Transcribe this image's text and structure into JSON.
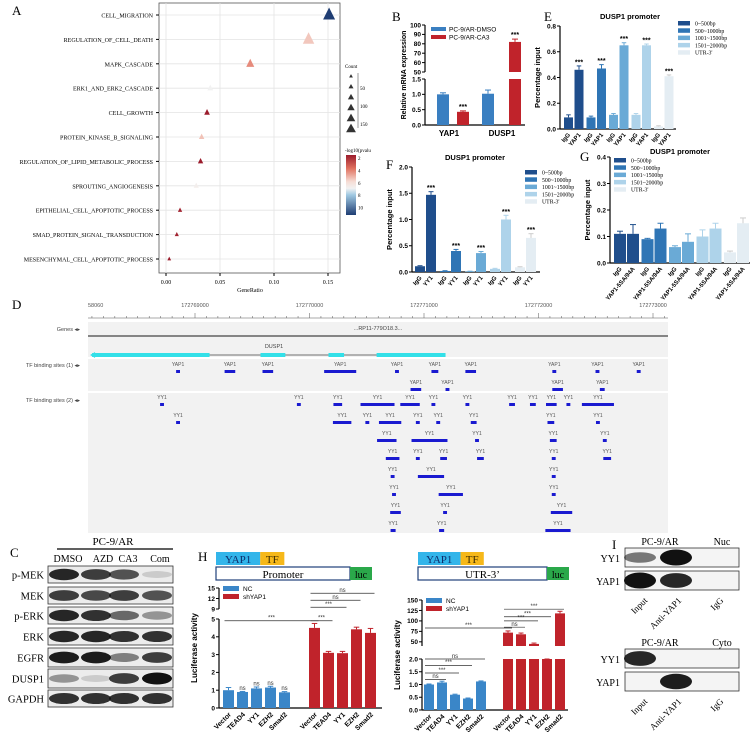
{
  "panel_letters": {
    "A": "A",
    "B": "B",
    "C": "C",
    "D": "D",
    "E": "E",
    "F": "F",
    "G": "G",
    "H": "H",
    "I": "I"
  },
  "chart_data": [
    {
      "id": "A",
      "type": "scatter",
      "marker": "triangle",
      "terms": [
        "CELL_MIGRATION",
        "REGULATION_OF_CELL_DEATH",
        "MAPK_CASCADE",
        "ERK1_AND_ERK2_CASCADE",
        "CELL_GROWTH",
        "PROTEIN_KINASE_B_SIGNALING",
        "REGULATION_OF_LIPID_METABOLIC_PROCESS",
        "SPROUTING_ANGIOGENESIS",
        "EPITHELIAL_CELL_APOPTOTIC_PROCESS",
        "SMAD_PROTEIN_SIGNAL_TRANSDUCTION",
        "MESENCHYMAL_CELL_APOPTOTIC_PROCESS"
      ],
      "gene_ratio": [
        0.151,
        0.132,
        0.078,
        0.041,
        0.038,
        0.033,
        0.032,
        0.028,
        0.013,
        0.01,
        0.003
      ],
      "count": [
        160,
        150,
        85,
        42,
        40,
        35,
        34,
        30,
        14,
        11,
        4
      ],
      "neg_log10_pvalue": [
        11,
        5.6,
        4.5,
        7,
        2,
        5.5,
        2,
        6.8,
        2.2,
        2.2,
        2
      ],
      "xlabel": "GeneRatio",
      "xticks": [
        "0.00",
        "0.05",
        "0.10",
        "0.15"
      ],
      "xlim": [
        -0.008,
        0.16
      ],
      "size_legend_title": "Count",
      "size_ticks": [
        "50",
        "100",
        "150"
      ],
      "color_legend_title": "-log10(pvalu",
      "color_ticks": [
        "2",
        "4",
        "6",
        "8",
        "10"
      ],
      "color_scale": [
        "#9b1c2c",
        "#e0705e",
        "#f6ddd5",
        "#f2f2f2",
        "#9fc8e2",
        "#1f3d73"
      ],
      "grid": true
    },
    {
      "id": "B",
      "type": "bar",
      "categories": [
        "YAP1",
        "DUSP1"
      ],
      "series": [
        {
          "name": "PC-9/AR-DMSO",
          "values": [
            1.0,
            1.02
          ],
          "errors": [
            0.05,
            0.12
          ],
          "color": "#3a7fc1"
        },
        {
          "name": "PC-9/AR-CA3",
          "values": [
            0.43,
            82
          ],
          "errors": [
            0.03,
            3
          ],
          "color": "#c0232b"
        }
      ],
      "ylabel": "Relative mRNA expression",
      "yaxis_break": true,
      "yticks_lower": [
        "0.0",
        "0.5",
        "1.0",
        "1.5"
      ],
      "yticks_upper": [
        "50",
        "60",
        "70",
        "80",
        "90",
        "100"
      ],
      "annotations": [
        "",
        "***",
        "",
        "***"
      ],
      "legend": "top-left"
    },
    {
      "id": "E",
      "type": "bar",
      "title": "DUSP1 promoter",
      "ylabel": "Percentage input",
      "regions": [
        "0~500bp",
        "500~1000bp",
        "1001~1500bp",
        "1501~2000bp",
        "UTR-3'"
      ],
      "colors": [
        "#1f4e8c",
        "#2f75b5",
        "#6aaad6",
        "#aed3ea",
        "#e4edf3"
      ],
      "group_labels": [
        "IgG",
        "YAP1"
      ],
      "values": [
        [
          0.09,
          0.46
        ],
        [
          0.09,
          0.47
        ],
        [
          0.11,
          0.65
        ],
        [
          0.11,
          0.65
        ],
        [
          0.02,
          0.41
        ]
      ],
      "errors": [
        [
          0.02,
          0.03
        ],
        [
          0.01,
          0.03
        ],
        [
          0.01,
          0.02
        ],
        [
          0.01,
          0.01
        ],
        [
          0.005,
          0.01
        ]
      ],
      "annotations": [
        "***",
        "***",
        "***",
        "***",
        "***"
      ],
      "yticks": [
        "0.0",
        "0.2",
        "0.4",
        "0.6",
        "0.8"
      ],
      "ylim": [
        0,
        0.8
      ],
      "legend": "top-right"
    },
    {
      "id": "F",
      "type": "bar",
      "title": "DUSP1 promoter",
      "ylabel": "Percentage input",
      "regions": [
        "0~500bp",
        "500~1000bp",
        "1001~1500bp",
        "1501~2000bp",
        "UTR-3'"
      ],
      "colors": [
        "#1f4e8c",
        "#2f75b5",
        "#6aaad6",
        "#aed3ea",
        "#e4edf3"
      ],
      "group_labels": [
        "IgG",
        "YY1"
      ],
      "values": [
        [
          0.11,
          1.47
        ],
        [
          0.02,
          0.4
        ],
        [
          0.01,
          0.36
        ],
        [
          0.06,
          1.0
        ],
        [
          0.09,
          0.65
        ]
      ],
      "errors": [
        [
          0.01,
          0.06
        ],
        [
          0.005,
          0.03
        ],
        [
          0.005,
          0.03
        ],
        [
          0.01,
          0.08
        ],
        [
          0.01,
          0.08
        ]
      ],
      "annotations": [
        "***",
        "***",
        "***",
        "***",
        "***"
      ],
      "yticks": [
        "0.0",
        "0.5",
        "1.0",
        "1.5",
        "2.0"
      ],
      "ylim": [
        0,
        2.0
      ],
      "legend": "top-right"
    },
    {
      "id": "G",
      "type": "bar",
      "title": "DUSP1 promoter",
      "ylabel": "Percentage input",
      "regions": [
        "0~500bp",
        "500~1000bp",
        "1001~1500bp",
        "1501~2000bp",
        "UTR-3'"
      ],
      "colors": [
        "#1f4e8c",
        "#2f75b5",
        "#6aaad6",
        "#aed3ea",
        "#e4edf3"
      ],
      "group_labels": [
        "IgG",
        "YAP1-5SA/94A"
      ],
      "values": [
        [
          0.11,
          0.11
        ],
        [
          0.09,
          0.13
        ],
        [
          0.06,
          0.08
        ],
        [
          0.1,
          0.13
        ],
        [
          0.04,
          0.15
        ]
      ],
      "errors": [
        [
          0.01,
          0.035
        ],
        [
          0.003,
          0.02
        ],
        [
          0.005,
          0.03
        ],
        [
          0.025,
          0.02
        ],
        [
          0.005,
          0.02
        ]
      ],
      "yticks": [
        "0.0",
        "0.1",
        "0.2",
        "0.3",
        "0.4"
      ],
      "ylim": [
        0,
        0.4
      ],
      "legend": "top-left"
    },
    {
      "id": "H-promoter",
      "type": "bar",
      "construct": {
        "tf_a": "YAP1",
        "tf_b": "TF",
        "region": "Promoter",
        "reporter": "luc"
      },
      "categories": [
        "Vector",
        "TEAD4",
        "YY1",
        "EZH2",
        "Smad2"
      ],
      "series": [
        {
          "name": "NC",
          "values": [
            1.0,
            0.9,
            1.1,
            1.15,
            0.88
          ],
          "errors": [
            0.15,
            0.03,
            0.08,
            0.07,
            0.04
          ],
          "color": "#3a86c8",
          "annotations": [
            "",
            "ns",
            "ns",
            "ns",
            "ns"
          ]
        },
        {
          "name": "shYAP1",
          "values": [
            4.5,
            3.1,
            3.08,
            4.42,
            4.22
          ],
          "errors": [
            0.25,
            0.08,
            0.1,
            0.12,
            0.25
          ],
          "color": "#c0232b"
        }
      ],
      "ylabel": "Luciferase activity",
      "yaxis_break": true,
      "yticks_lower": [
        "0",
        "1",
        "2",
        "3",
        "4",
        "5"
      ],
      "yticks_upper": [
        "9",
        "12",
        "15"
      ],
      "comparisons": [
        {
          "from": "NC Vector",
          "to": "shYAP1 Vector",
          "label": "***",
          "y": 4.9
        },
        {
          "from": "shYAP1 Vector",
          "to": "shYAP1 TEAD4",
          "label": "***",
          "y": 4.9
        },
        {
          "from": "shYAP1 Vector",
          "to": "shYAP1 YY1",
          "label": "***",
          "y": 9.5
        },
        {
          "from": "shYAP1 Vector",
          "to": "shYAP1 EZH2",
          "label": "ns",
          "y": 11.5
        },
        {
          "from": "shYAP1 Vector",
          "to": "shYAP1 Smad2",
          "label": "ns",
          "y": 13.5
        }
      ]
    },
    {
      "id": "H-utr",
      "type": "bar",
      "construct": {
        "tf_a": "YAP1",
        "tf_b": "TF",
        "region": "UTR-3’",
        "reporter": "luc"
      },
      "categories": [
        "Vector",
        "TEAD4",
        "YY1",
        "EZH2",
        "Smad2"
      ],
      "series": [
        {
          "name": "NC",
          "values": [
            1.0,
            1.08,
            0.6,
            0.45,
            1.12
          ],
          "errors": [
            0.02,
            0.05,
            0.02,
            0.02,
            0.02
          ],
          "color": "#3a86c8"
        },
        {
          "name": "shYAP1",
          "values": [
            72,
            68,
            45,
            35,
            118
          ],
          "errors": [
            4,
            3,
            2,
            4,
            5
          ],
          "color": "#c0232b"
        }
      ],
      "ylabel": "Luciferase activity",
      "yaxis_break": true,
      "yticks_lower": [
        "0.0",
        "0.5",
        "1.0",
        "1.5",
        "2.0"
      ],
      "yticks_upper": [
        "50",
        "75",
        "100",
        "125",
        "150"
      ],
      "comparisons": [
        {
          "from": "NC Vector",
          "to": "NC TEAD4",
          "label": "ns",
          "y": 1.2
        },
        {
          "from": "NC Vector",
          "to": "NC YY1",
          "label": "***",
          "y": 1.45
        },
        {
          "from": "NC Vector",
          "to": "NC EZH2",
          "label": "***",
          "y": 1.75
        },
        {
          "from": "NC Vector",
          "to": "NC Smad2",
          "label": "ns",
          "y": 2.0
        },
        {
          "from": "NC Vector",
          "to": "shYAP1 Vector",
          "label": "***",
          "y": 83
        },
        {
          "from": "shYAP1 Vector",
          "to": "shYAP1 TEAD4",
          "label": "ns",
          "y": 85
        },
        {
          "from": "shYAP1 Vector",
          "to": "shYAP1 YY1",
          "label": "***",
          "y": 100
        },
        {
          "from": "shYAP1 Vector",
          "to": "shYAP1 EZH2",
          "label": "***",
          "y": 110
        },
        {
          "from": "shYAP1 Vector",
          "to": "shYAP1 Smad2",
          "label": "***",
          "y": 128
        }
      ]
    }
  ],
  "genome_browser": {
    "axis_labels": [
      {
        "text": "58060",
        "bp": 172768080
      },
      {
        "text": "172769000",
        "bp": 172769000
      },
      {
        "text": "172770000",
        "bp": 172770000
      },
      {
        "text": "172771000",
        "bp": 172771000
      },
      {
        "text": "172772000",
        "bp": 172772000
      },
      {
        "text": "172773000",
        "bp": 172773000
      }
    ],
    "range": [
      172768071,
      172773189
    ],
    "tracks": {
      "genes": "Genes",
      "tf1": "TF binding sites (1)",
      "tf2": "TF binding sites (2)"
    },
    "gene_label_top": "...RP11-779O18.3...",
    "gene": {
      "name": "DUSP1",
      "start": 172768101,
      "end": 172771188,
      "strand": "-",
      "exons": [
        [
          172768101,
          172769127
        ],
        [
          172769572,
          172769789
        ],
        [
          172770166,
          172770302
        ],
        [
          172770586,
          172771188
        ]
      ],
      "color": "#33e0e8"
    },
    "site_color": "#1a1ad0",
    "tf1_rows": [
      {
        "tf": "YAP1",
        "sites": [
          [
            172768852,
            34
          ],
          [
            172769305,
            93
          ],
          [
            172769636,
            93
          ],
          [
            172770268,
            280
          ],
          [
            172770764,
            34
          ],
          [
            172771095,
            60
          ],
          [
            172771408,
            93
          ],
          [
            172772138,
            34
          ],
          [
            172772515,
            34
          ],
          [
            172772875,
            34
          ]
        ]
      },
      {
        "tf": "YAP1",
        "sites": [
          [
            172770929,
            93
          ],
          [
            172771205,
            34
          ],
          [
            172772167,
            93
          ],
          [
            172772557,
            42
          ]
        ]
      }
    ],
    "tf2_rows": [
      {
        "tf": "YY1",
        "sites": [
          [
            172768712,
            34
          ],
          [
            172769907,
            34
          ],
          [
            172770247,
            76
          ],
          [
            172770594,
            297
          ],
          [
            172770878,
            170
          ],
          [
            172771082,
            34
          ],
          [
            172771379,
            34
          ],
          [
            172771769,
            51
          ],
          [
            172771951,
            51
          ],
          [
            172772112,
            93
          ],
          [
            172772261,
            34
          ],
          [
            172772519,
            280
          ]
        ]
      },
      {
        "tf": "YY1",
        "sites": [
          [
            172768852,
            34
          ],
          [
            172770285,
            161
          ],
          [
            172770505,
            34
          ],
          [
            172770704,
            195
          ],
          [
            172770946,
            34
          ],
          [
            172771124,
            34
          ],
          [
            172771434,
            51
          ],
          [
            172772108,
            59
          ],
          [
            172772519,
            34
          ]
        ]
      },
      {
        "tf": "YY1",
        "sites": [
          [
            172770675,
            170
          ],
          [
            172771048,
            314
          ],
          [
            172771463,
            34
          ],
          [
            172772129,
            59
          ],
          [
            172772579,
            34
          ]
        ]
      },
      {
        "tf": "YY1",
        "sites": [
          [
            172770726,
            119
          ],
          [
            172770946,
            34
          ],
          [
            172771171,
            59
          ],
          [
            172771493,
            59
          ],
          [
            172772133,
            34
          ],
          [
            172772600,
            68
          ]
        ]
      },
      {
        "tf": "YY1",
        "sites": [
          [
            172770726,
            34
          ],
          [
            172771061,
            229
          ],
          [
            172772133,
            34
          ]
        ]
      },
      {
        "tf": "YY1",
        "sites": [
          [
            172770738,
            34
          ],
          [
            172771234,
            212
          ],
          [
            172772133,
            34
          ]
        ]
      },
      {
        "tf": "YY1",
        "sites": [
          [
            172770751,
            93
          ],
          [
            172771184,
            34
          ],
          [
            172772201,
            187
          ]
        ]
      },
      {
        "tf": "YY1",
        "sites": [
          [
            172770730,
            44
          ],
          [
            172771154,
            44
          ],
          [
            172772170,
            220
          ]
        ]
      }
    ]
  },
  "western_C": {
    "header": "PC-9/AR",
    "lanes": [
      "DMSO",
      "AZD",
      "CA3",
      "Com"
    ],
    "rows": [
      "p-MEK",
      "MEK",
      "p-ERK",
      "ERK",
      "EGFR",
      "DUSP1",
      "GAPDH"
    ]
  },
  "coip_I": {
    "nuc": {
      "header": "PC-9/AR",
      "fraction": "Nuc",
      "rows": [
        "YY1",
        "YAP1"
      ],
      "lanes": [
        "Input",
        "Anti-YAP1",
        "IgG"
      ]
    },
    "cyto": {
      "header": "PC-9/AR",
      "fraction": "Cyto",
      "rows": [
        "YY1",
        "YAP1"
      ],
      "lanes": [
        "Input",
        "Anti-YAP1",
        "IgG"
      ]
    }
  }
}
